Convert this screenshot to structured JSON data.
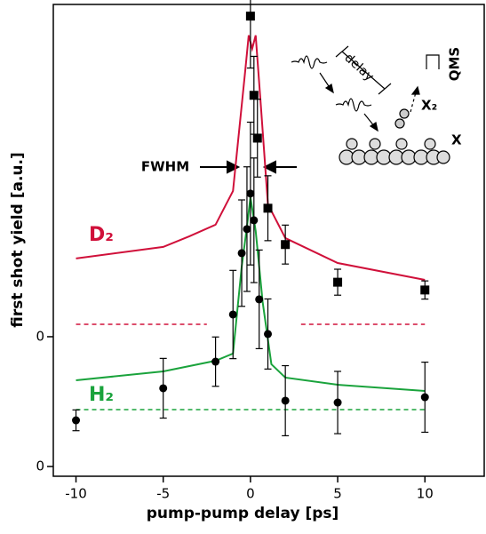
{
  "chart_data": {
    "type": "scatter",
    "xlabel": "pump-pump delay [ps]",
    "ylabel": "first shot yield [a.u.]",
    "xlim": [
      -11.3,
      13.4
    ],
    "xticks": [
      -10,
      -5,
      0,
      5,
      10
    ],
    "ylim": [
      -0.075,
      3.56
    ],
    "yticks": [
      {
        "value": 0,
        "label": "0"
      },
      {
        "value": 1,
        "label": "0"
      }
    ],
    "series": [
      {
        "name": "D₂",
        "color": "#d0103a",
        "marker": "square",
        "x": [
          0,
          0.2,
          0.4,
          1,
          2,
          5,
          10
        ],
        "values": [
          3.47,
          2.86,
          2.53,
          1.99,
          1.71,
          1.42,
          1.36
        ],
        "errors": [
          0.4,
          0.3,
          0.3,
          0.25,
          0.15,
          0.1,
          0.07
        ]
      },
      {
        "name": "H₂",
        "color": "#1aa33c",
        "marker": "circle",
        "x": [
          -10,
          -5,
          -2,
          -1,
          -0.5,
          -0.2,
          0,
          0.2,
          0.5,
          1,
          2,
          5,
          10
        ],
        "values": [
          0.356,
          0.603,
          0.808,
          1.171,
          1.644,
          1.829,
          2.103,
          1.897,
          1.288,
          1.021,
          0.507,
          0.493,
          0.534
        ],
        "errors": [
          0.08,
          0.23,
          0.19,
          0.34,
          0.41,
          0.48,
          0.55,
          0.48,
          0.38,
          0.27,
          0.27,
          0.24,
          0.27
        ]
      }
    ],
    "fits": [
      {
        "color": "#d0103a",
        "x": [
          -10,
          -5,
          -3.5,
          -2,
          -1,
          -0.3,
          -0.1,
          0.1,
          0.3,
          0.6,
          1,
          2,
          5,
          10
        ],
        "values": [
          1.603,
          1.692,
          1.774,
          1.863,
          2.123,
          3.048,
          3.322,
          3.219,
          3.322,
          2.774,
          2.021,
          1.76,
          1.568,
          1.438
        ]
      },
      {
        "color": "#1aa33c",
        "x": [
          -10,
          -5,
          -2,
          -1,
          -0.5,
          -0.2,
          0,
          0.3,
          0.7,
          1.2,
          2,
          5,
          10
        ],
        "values": [
          0.664,
          0.733,
          0.815,
          0.87,
          1.541,
          1.849,
          2.075,
          1.815,
          1.267,
          0.788,
          0.685,
          0.63,
          0.582
        ]
      }
    ],
    "baselines": [
      {
        "color": "#d0103a",
        "value": 1.096,
        "xranges": [
          [
            -10,
            -2.5
          ],
          [
            2.9,
            10
          ]
        ]
      },
      {
        "color": "#1aa33c",
        "value": 0.438,
        "xranges": [
          [
            -10,
            10
          ]
        ]
      }
    ],
    "annotations": {
      "fwhm": "FWHM",
      "delay": "delay",
      "x2": "X₂",
      "qms": "QMS",
      "x": "X"
    }
  }
}
